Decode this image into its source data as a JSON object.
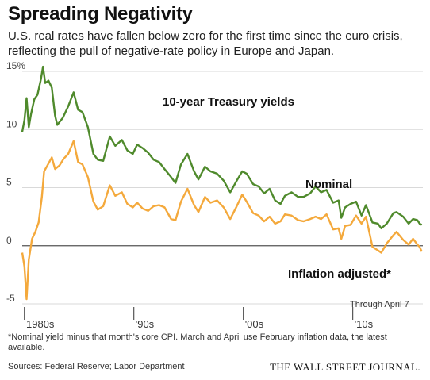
{
  "title": "Spreading Negativity",
  "subtitle": "U.S. real rates have fallen below zero for the first time since the euro crisis, reflecting the pull of negative-rate policy in Europe and Japan.",
  "footnote": "*Nominal yield minus that month's core CPI. March and April use February inflation data, the latest available.",
  "sources": "Sources: Federal Reserve; Labor Department",
  "publisher": "THE WALL STREET JOURNAL.",
  "colors": {
    "nominal": "#4f8a2c",
    "inflation_adjusted": "#f4a93c",
    "grid": "#d9d9d9",
    "zero_line": "#555555"
  },
  "chart_data": {
    "type": "line",
    "chart_title": "10-year Treasury yields",
    "note": "Through April 7",
    "y_unit_label": "15%",
    "ylim": [
      -5,
      15
    ],
    "xlim": [
      1979.8,
      2016.4
    ],
    "y_ticks": [
      -5,
      0,
      5,
      10
    ],
    "x_ticks": [
      {
        "value": 1980,
        "label": "1980s"
      },
      {
        "value": 1990,
        "label": "'90s"
      },
      {
        "value": 2000,
        "label": "'00s"
      },
      {
        "value": 2010,
        "label": "'10s"
      }
    ],
    "grid": true,
    "series": [
      {
        "name": "Nominal",
        "color": "#4f8a2c",
        "points": [
          [
            1979.8,
            9.8
          ],
          [
            1980.0,
            10.8
          ],
          [
            1980.2,
            12.7
          ],
          [
            1980.4,
            10.2
          ],
          [
            1980.6,
            11.3
          ],
          [
            1980.9,
            12.6
          ],
          [
            1981.2,
            13.0
          ],
          [
            1981.5,
            14.3
          ],
          [
            1981.7,
            15.4
          ],
          [
            1981.9,
            14.0
          ],
          [
            1982.2,
            14.2
          ],
          [
            1982.5,
            13.6
          ],
          [
            1982.8,
            11.2
          ],
          [
            1983.0,
            10.4
          ],
          [
            1983.5,
            11.0
          ],
          [
            1984.0,
            12.0
          ],
          [
            1984.5,
            13.2
          ],
          [
            1984.9,
            11.7
          ],
          [
            1985.3,
            11.5
          ],
          [
            1985.8,
            10.2
          ],
          [
            1986.3,
            7.9
          ],
          [
            1986.7,
            7.4
          ],
          [
            1987.2,
            7.3
          ],
          [
            1987.8,
            9.4
          ],
          [
            1988.3,
            8.6
          ],
          [
            1988.9,
            9.1
          ],
          [
            1989.4,
            8.2
          ],
          [
            1989.9,
            7.9
          ],
          [
            1990.3,
            8.7
          ],
          [
            1990.8,
            8.4
          ],
          [
            1991.3,
            8.0
          ],
          [
            1991.8,
            7.4
          ],
          [
            1992.3,
            7.2
          ],
          [
            1992.8,
            6.6
          ],
          [
            1993.4,
            5.9
          ],
          [
            1993.8,
            5.4
          ],
          [
            1994.3,
            7.0
          ],
          [
            1994.9,
            7.9
          ],
          [
            1995.5,
            6.4
          ],
          [
            1995.9,
            5.7
          ],
          [
            1996.5,
            6.8
          ],
          [
            1997.0,
            6.4
          ],
          [
            1997.6,
            6.2
          ],
          [
            1998.2,
            5.6
          ],
          [
            1998.8,
            4.6
          ],
          [
            1999.4,
            5.6
          ],
          [
            1999.9,
            6.4
          ],
          [
            2000.3,
            6.2
          ],
          [
            2000.9,
            5.3
          ],
          [
            2001.4,
            5.1
          ],
          [
            2001.9,
            4.5
          ],
          [
            2002.4,
            4.9
          ],
          [
            2002.9,
            3.9
          ],
          [
            2003.4,
            3.6
          ],
          [
            2003.8,
            4.3
          ],
          [
            2004.4,
            4.6
          ],
          [
            2005.0,
            4.2
          ],
          [
            2005.5,
            4.2
          ],
          [
            2006.1,
            4.5
          ],
          [
            2006.6,
            5.1
          ],
          [
            2007.1,
            4.6
          ],
          [
            2007.6,
            4.8
          ],
          [
            2008.2,
            3.7
          ],
          [
            2008.7,
            3.9
          ],
          [
            2008.95,
            2.4
          ],
          [
            2009.3,
            3.3
          ],
          [
            2009.8,
            3.6
          ],
          [
            2010.3,
            3.8
          ],
          [
            2010.8,
            2.6
          ],
          [
            2011.2,
            3.5
          ],
          [
            2011.8,
            2.0
          ],
          [
            2012.3,
            1.9
          ],
          [
            2012.6,
            1.5
          ],
          [
            2013.1,
            1.9
          ],
          [
            2013.7,
            2.8
          ],
          [
            2014.0,
            2.9
          ],
          [
            2014.6,
            2.5
          ],
          [
            2015.1,
            1.9
          ],
          [
            2015.5,
            2.3
          ],
          [
            2015.9,
            2.2
          ],
          [
            2016.1,
            1.9
          ],
          [
            2016.3,
            1.8
          ]
        ]
      },
      {
        "name": "Inflation adjusted",
        "name_label": "Inflation adjusted*",
        "color": "#f4a93c",
        "points": [
          [
            1979.8,
            -0.6
          ],
          [
            1980.0,
            -1.8
          ],
          [
            1980.2,
            -4.6
          ],
          [
            1980.4,
            -1.2
          ],
          [
            1980.7,
            0.6
          ],
          [
            1981.0,
            1.2
          ],
          [
            1981.3,
            2.0
          ],
          [
            1981.6,
            4.2
          ],
          [
            1981.8,
            6.4
          ],
          [
            1982.1,
            6.9
          ],
          [
            1982.5,
            7.6
          ],
          [
            1982.8,
            6.6
          ],
          [
            1983.2,
            6.9
          ],
          [
            1983.6,
            7.5
          ],
          [
            1984.0,
            7.9
          ],
          [
            1984.5,
            9.0
          ],
          [
            1984.9,
            7.2
          ],
          [
            1985.3,
            7.0
          ],
          [
            1985.8,
            5.9
          ],
          [
            1986.3,
            3.8
          ],
          [
            1986.7,
            3.1
          ],
          [
            1987.2,
            3.4
          ],
          [
            1987.8,
            5.2
          ],
          [
            1988.3,
            4.3
          ],
          [
            1988.9,
            4.6
          ],
          [
            1989.4,
            3.6
          ],
          [
            1989.9,
            3.3
          ],
          [
            1990.3,
            3.7
          ],
          [
            1990.8,
            3.2
          ],
          [
            1991.3,
            3.0
          ],
          [
            1991.8,
            3.4
          ],
          [
            1992.3,
            3.5
          ],
          [
            1992.8,
            3.3
          ],
          [
            1993.4,
            2.3
          ],
          [
            1993.8,
            2.2
          ],
          [
            1994.3,
            3.8
          ],
          [
            1994.9,
            4.9
          ],
          [
            1995.5,
            3.5
          ],
          [
            1995.9,
            2.9
          ],
          [
            1996.5,
            4.2
          ],
          [
            1997.0,
            3.7
          ],
          [
            1997.6,
            3.9
          ],
          [
            1998.2,
            3.3
          ],
          [
            1998.8,
            2.3
          ],
          [
            1999.4,
            3.4
          ],
          [
            1999.9,
            4.4
          ],
          [
            2000.3,
            3.8
          ],
          [
            2000.9,
            2.8
          ],
          [
            2001.4,
            2.6
          ],
          [
            2001.9,
            2.1
          ],
          [
            2002.4,
            2.5
          ],
          [
            2002.9,
            1.9
          ],
          [
            2003.4,
            2.1
          ],
          [
            2003.8,
            2.7
          ],
          [
            2004.4,
            2.6
          ],
          [
            2005.0,
            2.2
          ],
          [
            2005.5,
            2.1
          ],
          [
            2006.1,
            2.3
          ],
          [
            2006.6,
            2.5
          ],
          [
            2007.1,
            2.3
          ],
          [
            2007.6,
            2.7
          ],
          [
            2008.2,
            1.4
          ],
          [
            2008.7,
            1.5
          ],
          [
            2008.95,
            0.6
          ],
          [
            2009.3,
            1.7
          ],
          [
            2009.8,
            1.8
          ],
          [
            2010.3,
            2.6
          ],
          [
            2010.8,
            1.9
          ],
          [
            2011.2,
            2.5
          ],
          [
            2011.8,
            -0.1
          ],
          [
            2012.3,
            -0.4
          ],
          [
            2012.6,
            -0.6
          ],
          [
            2013.1,
            0.2
          ],
          [
            2013.7,
            0.9
          ],
          [
            2014.0,
            1.2
          ],
          [
            2014.6,
            0.5
          ],
          [
            2015.1,
            0.1
          ],
          [
            2015.5,
            0.6
          ],
          [
            2015.9,
            0.1
          ],
          [
            2016.1,
            -0.1
          ],
          [
            2016.3,
            -0.5
          ]
        ]
      }
    ]
  }
}
